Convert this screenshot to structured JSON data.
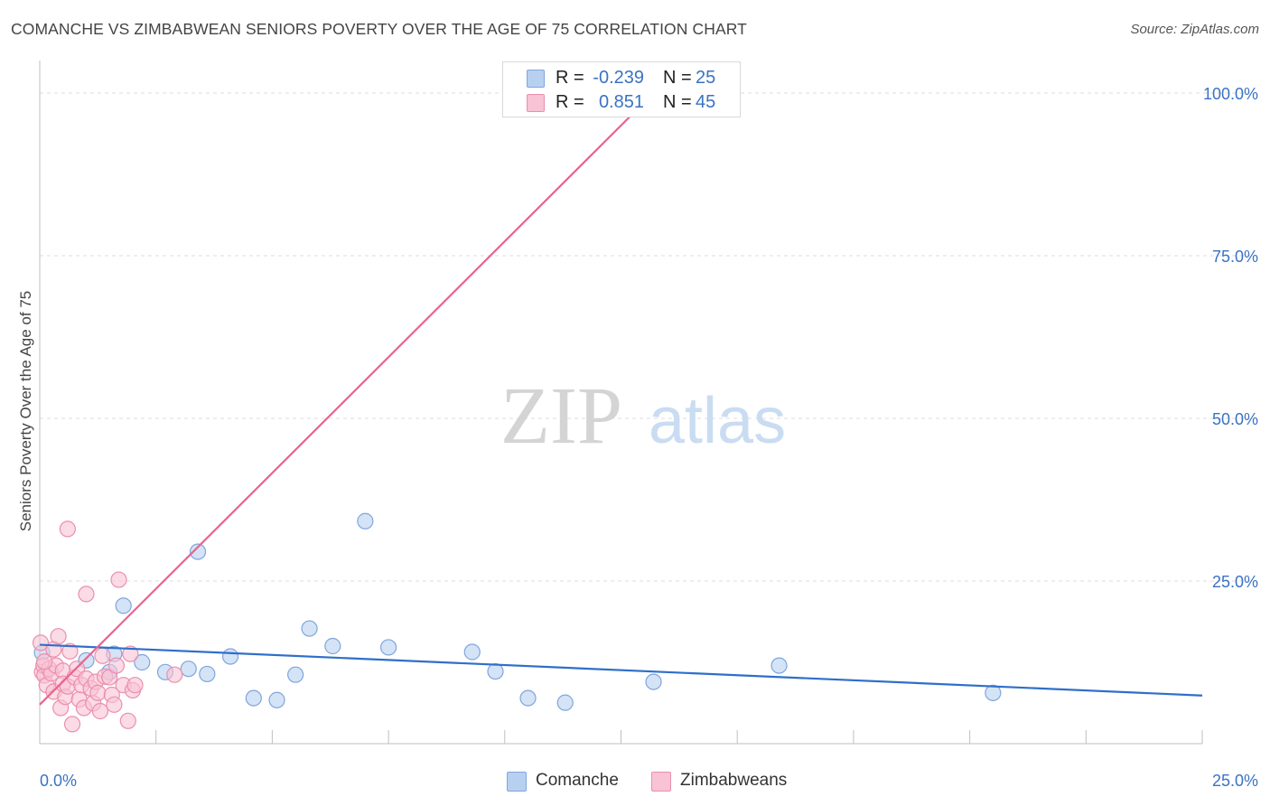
{
  "title": "COMANCHE VS ZIMBABWEAN SENIORS POVERTY OVER THE AGE OF 75 CORRELATION CHART",
  "source": "Source: ZipAtlas.com",
  "watermark": {
    "part1": "ZIP",
    "part2": "atlas"
  },
  "stats": [
    {
      "r_label": "R =",
      "r_value": "-0.239",
      "n_label": "N =",
      "n_value": "25"
    },
    {
      "r_label": "R =",
      "r_value": "0.851",
      "n_label": "N =",
      "n_value": "45"
    }
  ],
  "legend": [
    {
      "label": "Comanche"
    },
    {
      "label": "Zimbabweans"
    }
  ],
  "colors": {
    "comanche_fill": "#b8d0f0",
    "comanche_stroke": "#7fa6dc",
    "comanche_line": "#2f6fc9",
    "zimbabwean_fill": "#f8c3d4",
    "zimbabwean_stroke": "#eb8fae",
    "zimbabwean_line": "#e8648e",
    "tick_label": "#3a72c4",
    "grid": "#dddddd"
  },
  "chart_data": {
    "type": "scatter",
    "title": "COMANCHE VS ZIMBABWEAN SENIORS POVERTY OVER THE AGE OF 75 CORRELATION CHART",
    "xlabel": "",
    "ylabel": "Seniors Poverty Over the Age of 75",
    "xlim": [
      0,
      25
    ],
    "ylim": [
      0,
      105
    ],
    "x_tick_labels": [
      "0.0%",
      "25.0%"
    ],
    "y_ticks": [
      25,
      50,
      75,
      100
    ],
    "y_tick_labels": [
      "25.0%",
      "50.0%",
      "75.0%",
      "100.0%"
    ],
    "grid": "horizontal dashed",
    "legend_position": "bottom-center",
    "series": [
      {
        "name": "Comanche",
        "points": [
          [
            0.05,
            14.0
          ],
          [
            1.0,
            12.8
          ],
          [
            1.5,
            11.0
          ],
          [
            1.6,
            13.8
          ],
          [
            1.8,
            21.2
          ],
          [
            2.2,
            12.5
          ],
          [
            2.7,
            11.0
          ],
          [
            3.2,
            11.5
          ],
          [
            3.4,
            29.5
          ],
          [
            3.6,
            10.7
          ],
          [
            4.1,
            13.4
          ],
          [
            4.6,
            7.0
          ],
          [
            5.1,
            6.7
          ],
          [
            5.5,
            10.6
          ],
          [
            5.8,
            17.7
          ],
          [
            6.3,
            15.0
          ],
          [
            7.0,
            34.2
          ],
          [
            7.5,
            14.8
          ],
          [
            9.3,
            14.1
          ],
          [
            9.8,
            11.1
          ],
          [
            10.5,
            7.0
          ],
          [
            11.3,
            6.3
          ],
          [
            13.2,
            9.5
          ],
          [
            15.9,
            12.0
          ],
          [
            20.5,
            7.8
          ]
        ],
        "trend": {
          "x": [
            0,
            25
          ],
          "y": [
            15.2,
            7.4
          ]
        }
      },
      {
        "name": "Zimbabweans",
        "points": [
          [
            0.02,
            15.5
          ],
          [
            0.05,
            11.0
          ],
          [
            0.08,
            12.0
          ],
          [
            0.1,
            10.5
          ],
          [
            0.15,
            9.0
          ],
          [
            0.2,
            11.5
          ],
          [
            0.25,
            10.8
          ],
          [
            0.3,
            14.5
          ],
          [
            0.3,
            8.0
          ],
          [
            0.35,
            12.0
          ],
          [
            0.4,
            16.5
          ],
          [
            0.45,
            5.5
          ],
          [
            0.5,
            11.2
          ],
          [
            0.5,
            9.2
          ],
          [
            0.55,
            7.2
          ],
          [
            0.6,
            33.0
          ],
          [
            0.6,
            8.8
          ],
          [
            0.65,
            14.2
          ],
          [
            0.7,
            3.0
          ],
          [
            0.75,
            10.2
          ],
          [
            0.8,
            11.5
          ],
          [
            0.85,
            6.8
          ],
          [
            0.9,
            9.0
          ],
          [
            0.95,
            5.5
          ],
          [
            1.0,
            23.0
          ],
          [
            1.0,
            10.0
          ],
          [
            1.1,
            8.5
          ],
          [
            1.15,
            6.2
          ],
          [
            1.2,
            9.5
          ],
          [
            1.25,
            7.8
          ],
          [
            1.3,
            5.0
          ],
          [
            1.35,
            13.5
          ],
          [
            1.4,
            10.3
          ],
          [
            1.5,
            10.2
          ],
          [
            1.55,
            7.5
          ],
          [
            1.6,
            6.0
          ],
          [
            1.65,
            12.0
          ],
          [
            1.7,
            25.2
          ],
          [
            1.8,
            9.0
          ],
          [
            1.9,
            3.5
          ],
          [
            1.95,
            13.8
          ],
          [
            2.0,
            8.2
          ],
          [
            2.05,
            9.0
          ],
          [
            2.9,
            10.6
          ],
          [
            0.1,
            12.6
          ]
        ],
        "trend": {
          "x": [
            0,
            13.2
          ],
          "y": [
            6.0,
            100.0
          ]
        }
      }
    ]
  }
}
